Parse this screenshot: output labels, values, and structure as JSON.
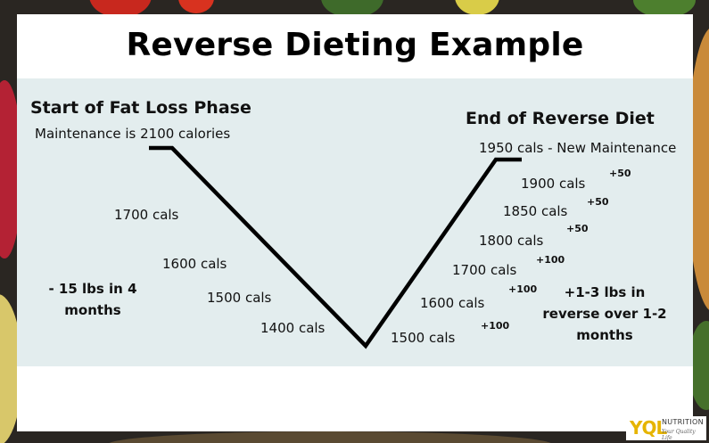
{
  "title": "Reverse Dieting Example",
  "left": {
    "heading": "Start of Fat Loss Phase",
    "subheading": "Maintenance is 2100 calories",
    "note": "- 15 lbs in 4 months"
  },
  "right": {
    "heading": "End of Reverse Diet",
    "subheading": "1950 cals - New Maintenance",
    "note": "+1-3 lbs in reverse over 1-2 months"
  },
  "down_steps": [
    "1700 cals",
    "1600 cals",
    "1500 cals",
    "1400 cals"
  ],
  "up_steps": [
    {
      "label": "1500 cals",
      "change": "+100"
    },
    {
      "label": "1600 cals",
      "change": "+100"
    },
    {
      "label": "1700 cals",
      "change": "+100"
    },
    {
      "label": "1800 cals",
      "change": "+50"
    },
    {
      "label": "1850 cals",
      "change": "+50"
    },
    {
      "label": "1900 cals",
      "change": "+50"
    }
  ],
  "logo": {
    "main": "YQL",
    "sub": "NUTRITION",
    "tagline": "Your Quality Life"
  },
  "colors": {
    "panel": "#e3edee",
    "line": "#000000",
    "logo": "#e6b400"
  }
}
